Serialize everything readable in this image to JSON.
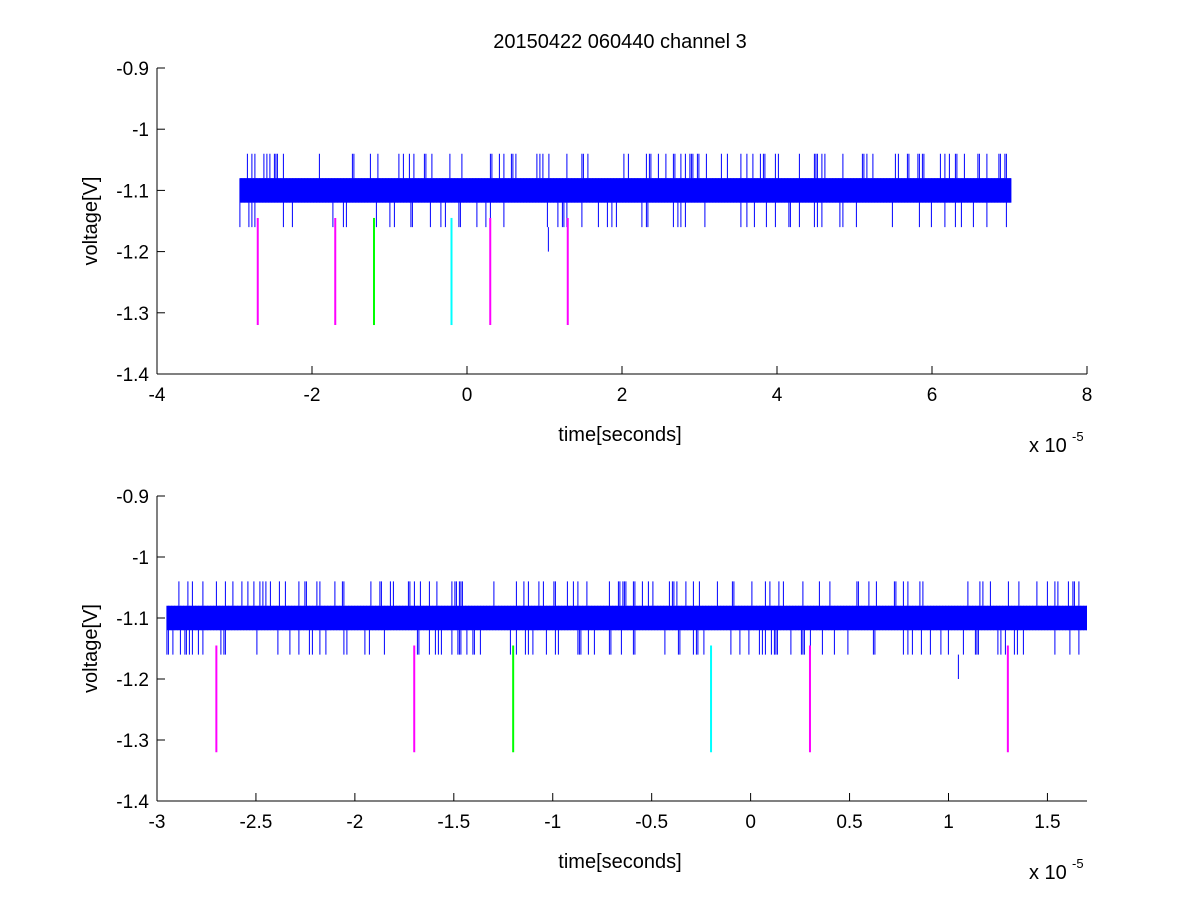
{
  "figure": {
    "title": "20150422 060440 channel 3"
  },
  "chart_data": [
    {
      "type": "line",
      "title": "20150422 060440 channel 3",
      "xlabel": "time[seconds]",
      "ylabel": "voltage[V]",
      "x_multiplier_label": "x 10",
      "x_multiplier_exp": "-5",
      "xlim": [
        -4,
        8
      ],
      "ylim": [
        -1.4,
        -0.9
      ],
      "x_ticks": [
        -4,
        -2,
        0,
        2,
        4,
        6,
        8
      ],
      "x_tick_labels": [
        "-4",
        "-2",
        "0",
        "2",
        "4",
        "6",
        "8"
      ],
      "y_ticks": [
        -0.9,
        -1,
        -1.1,
        -1.2,
        -1.3,
        -1.4
      ],
      "y_tick_labels": [
        "-0.9",
        "-1",
        "-1.1",
        "-1.2",
        "-1.3",
        "-1.4"
      ],
      "grid": false,
      "series": [
        {
          "kind": "noise-band",
          "color": "#0000ff",
          "x_start": -2.93,
          "x_end": 7.02,
          "band": [
            -1.12,
            -1.08
          ],
          "spike_range": [
            -1.16,
            -1.04
          ],
          "outlier": {
            "x": 1.05,
            "y": -1.2
          }
        }
      ],
      "markers": [
        {
          "x": -2.7,
          "y_top": -1.145,
          "y_bottom": -1.32,
          "color": "#ff00ff"
        },
        {
          "x": -1.7,
          "y_top": -1.145,
          "y_bottom": -1.32,
          "color": "#ff00ff"
        },
        {
          "x": -1.2,
          "y_top": -1.145,
          "y_bottom": -1.32,
          "color": "#00ff00"
        },
        {
          "x": -0.2,
          "y_top": -1.145,
          "y_bottom": -1.32,
          "color": "#00ffff"
        },
        {
          "x": 0.3,
          "y_top": -1.145,
          "y_bottom": -1.32,
          "color": "#ff00ff"
        },
        {
          "x": 1.3,
          "y_top": -1.145,
          "y_bottom": -1.32,
          "color": "#ff00ff"
        }
      ]
    },
    {
      "type": "line",
      "title": "",
      "xlabel": "time[seconds]",
      "ylabel": "voltage[V]",
      "x_multiplier_label": "x 10",
      "x_multiplier_exp": "-5",
      "xlim": [
        -3,
        1.7
      ],
      "ylim": [
        -1.4,
        -0.9
      ],
      "x_ticks": [
        -3,
        -2.5,
        -2,
        -1.5,
        -1,
        -0.5,
        0,
        0.5,
        1,
        1.5
      ],
      "x_tick_labels": [
        "-3",
        "-2.5",
        "-2",
        "-1.5",
        "-1",
        "-0.5",
        "0",
        "0.5",
        "1",
        "1.5"
      ],
      "y_ticks": [
        -0.9,
        -1,
        -1.1,
        -1.2,
        -1.3,
        -1.4
      ],
      "y_tick_labels": [
        "-0.9",
        "-1",
        "-1.1",
        "-1.2",
        "-1.3",
        "-1.4"
      ],
      "grid": false,
      "series": [
        {
          "kind": "noise-band",
          "color": "#0000ff",
          "x_start": -2.95,
          "x_end": 1.7,
          "band": [
            -1.12,
            -1.08
          ],
          "spike_range": [
            -1.16,
            -1.04
          ],
          "outlier": {
            "x": 1.05,
            "y": -1.2
          }
        }
      ],
      "markers": [
        {
          "x": -2.7,
          "y_top": -1.145,
          "y_bottom": -1.32,
          "color": "#ff00ff"
        },
        {
          "x": -1.7,
          "y_top": -1.145,
          "y_bottom": -1.32,
          "color": "#ff00ff"
        },
        {
          "x": -1.2,
          "y_top": -1.145,
          "y_bottom": -1.32,
          "color": "#00ff00"
        },
        {
          "x": -0.2,
          "y_top": -1.145,
          "y_bottom": -1.32,
          "color": "#00ffff"
        },
        {
          "x": 0.3,
          "y_top": -1.145,
          "y_bottom": -1.32,
          "color": "#ff00ff"
        },
        {
          "x": 1.3,
          "y_top": -1.145,
          "y_bottom": -1.32,
          "color": "#ff00ff"
        }
      ]
    }
  ]
}
